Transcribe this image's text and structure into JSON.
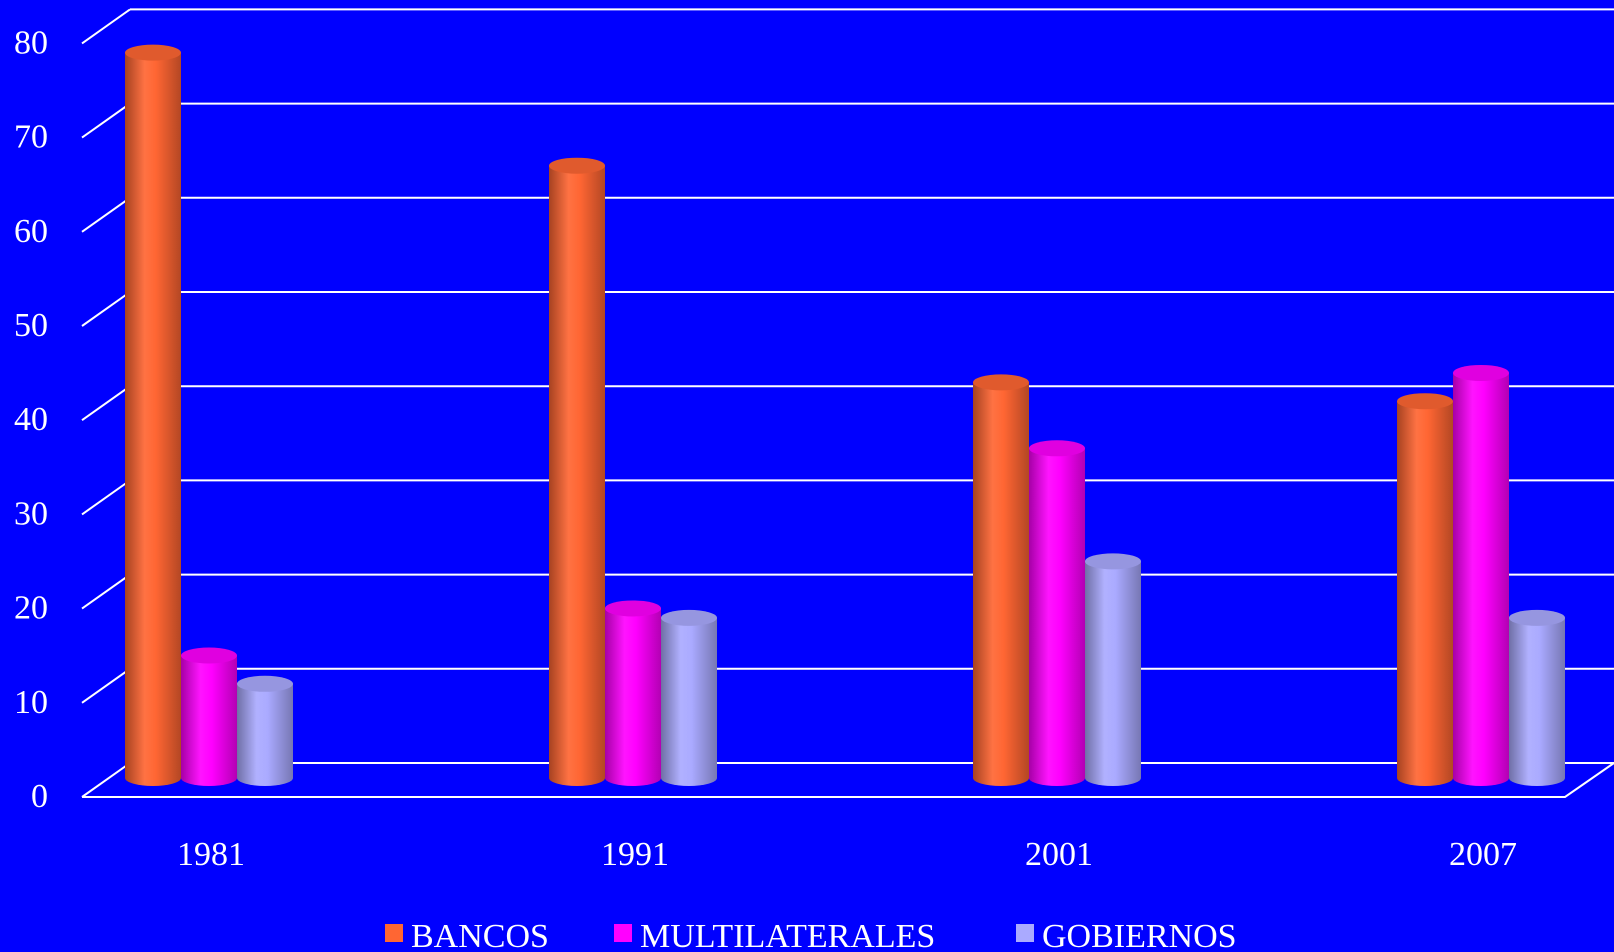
{
  "colors": {
    "background": "#0000ff",
    "gridline": "#ffffff",
    "text": "#ffffff"
  },
  "chart_data": {
    "type": "bar",
    "style": "3d-cylinder",
    "categories": [
      "1981",
      "1991",
      "2001",
      "2007"
    ],
    "series": [
      {
        "name": "BANCOS",
        "color": "#ff6633",
        "values": [
          77,
          65,
          42,
          40
        ]
      },
      {
        "name": "MULTILATERALES",
        "color": "#ff00ff",
        "values": [
          13,
          18,
          35,
          43
        ]
      },
      {
        "name": "GOBIERNOS",
        "color": "#aaaaff",
        "values": [
          10,
          17,
          23,
          17
        ]
      }
    ],
    "y_ticks": [
      "0",
      "10",
      "20",
      "30",
      "40",
      "50",
      "60",
      "70",
      "80"
    ],
    "ylim": [
      0,
      80
    ],
    "grid": true,
    "legend_position": "bottom"
  }
}
